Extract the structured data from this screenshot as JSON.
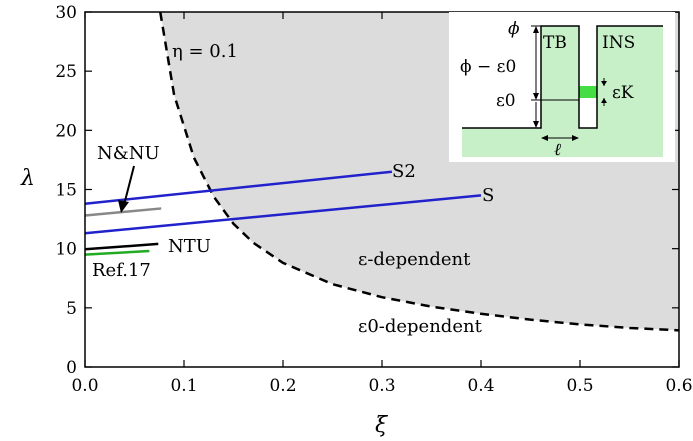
{
  "chart_data": {
    "type": "line",
    "title": "",
    "xlabel": "ξ",
    "ylabel": "λ",
    "xlim": [
      0,
      0.6
    ],
    "ylim": [
      0,
      30
    ],
    "xticks": [
      0.0,
      0.1,
      0.2,
      0.3,
      0.4,
      0.5,
      0.6
    ],
    "xtick_labels": [
      "0.0",
      "0.1",
      "0.2",
      "0.3",
      "0.4",
      "0.5",
      "0.6"
    ],
    "yticks": [
      0,
      5,
      10,
      15,
      20,
      25,
      30
    ],
    "ytick_labels": [
      "0",
      "5",
      "10",
      "15",
      "20",
      "25",
      "30"
    ],
    "grid": false,
    "boundary": {
      "label": "η = 0.1",
      "style": "dashed",
      "x": [
        0.076,
        0.09,
        0.11,
        0.13,
        0.15,
        0.17,
        0.2,
        0.25,
        0.3,
        0.35,
        0.4,
        0.45,
        0.5,
        0.55,
        0.6
      ],
      "y": [
        30,
        23.0,
        17.7,
        14.4,
        12.1,
        10.5,
        8.8,
        7.0,
        5.9,
        5.1,
        4.5,
        4.0,
        3.6,
        3.3,
        3.1
      ],
      "fill": "#dcdcdc"
    },
    "series": [
      {
        "name": "S2",
        "color": "#2222cc",
        "x": [
          0.0,
          0.31
        ],
        "y": [
          13.8,
          16.5
        ]
      },
      {
        "name": "S",
        "color": "#2222cc",
        "x": [
          0.0,
          0.4
        ],
        "y": [
          11.3,
          14.5
        ]
      },
      {
        "name": "N&NU",
        "color": "#888888",
        "x": [
          0.0,
          0.077
        ],
        "y": [
          12.8,
          13.4
        ]
      },
      {
        "name": "NTU",
        "color": "#000000",
        "x": [
          0.0,
          0.074
        ],
        "y": [
          9.95,
          10.4
        ]
      },
      {
        "name": "Ref.17",
        "color": "#22aa22",
        "x": [
          0.0,
          0.065
        ],
        "y": [
          9.5,
          9.8
        ]
      }
    ],
    "annotations": {
      "eta": "η = 0.1",
      "eps_dep": "ε-dependent",
      "eps0_dep": "ε0-dependent",
      "nnu": "N&NU",
      "ntu": "NTU",
      "ref17": "Ref.17",
      "s2": "S2",
      "s": "S"
    },
    "inset": {
      "labels": {
        "phi": "ϕ",
        "phi_minus_eps0": "ϕ − ε0",
        "eps0": "ε0",
        "tb": "TB",
        "ins": "INS",
        "epsk": "εK",
        "ell": "ℓ"
      },
      "fill_color": "#c8f0c8",
      "level_color": "#44dd44"
    }
  }
}
